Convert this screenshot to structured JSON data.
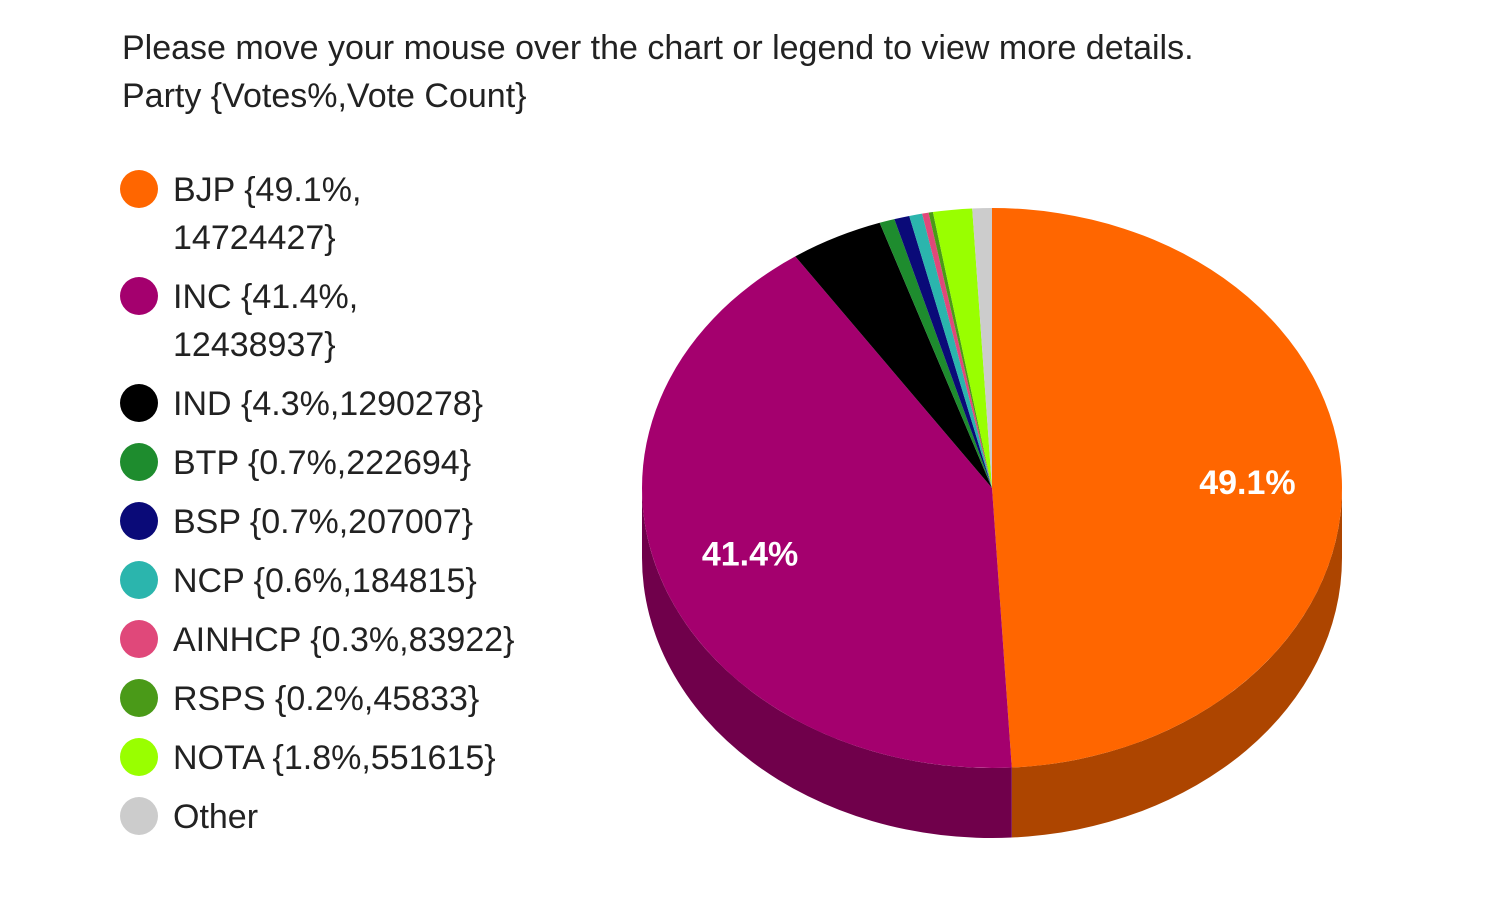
{
  "instruction": "Please move your mouse over the chart or legend to view more details.",
  "subtitle": "Party {Votes%,Vote Count}",
  "chart_data": {
    "type": "pie",
    "subtitle": "Party {Votes%,Vote Count}",
    "series": [
      {
        "name": "BJP",
        "percent": 49.1,
        "votes": 14724427,
        "color": "#ff6600",
        "legend_lines": [
          "BJP {49.1%,",
          "14724427}"
        ],
        "data_label": "49.1%"
      },
      {
        "name": "INC",
        "percent": 41.4,
        "votes": 12438937,
        "color": "#a4006e",
        "legend_lines": [
          "INC {41.4%,",
          "12438937}"
        ],
        "data_label": "41.4%"
      },
      {
        "name": "IND",
        "percent": 4.3,
        "votes": 1290278,
        "color": "#000000",
        "legend_lines": [
          "IND {4.3%,1290278}"
        ],
        "data_label": ""
      },
      {
        "name": "BTP",
        "percent": 0.7,
        "votes": 222694,
        "color": "#1e8c2e",
        "legend_lines": [
          "BTP {0.7%,222694}"
        ],
        "data_label": ""
      },
      {
        "name": "BSP",
        "percent": 0.7,
        "votes": 207007,
        "color": "#0a0a78",
        "legend_lines": [
          "BSP {0.7%,207007}"
        ],
        "data_label": ""
      },
      {
        "name": "NCP",
        "percent": 0.6,
        "votes": 184815,
        "color": "#2bb5ad",
        "legend_lines": [
          "NCP {0.6%,184815}"
        ],
        "data_label": ""
      },
      {
        "name": "AINHCP",
        "percent": 0.3,
        "votes": 83922,
        "color": "#e0487a",
        "legend_lines": [
          "AINHCP {0.3%,83922}"
        ],
        "data_label": ""
      },
      {
        "name": "RSPS",
        "percent": 0.2,
        "votes": 45833,
        "color": "#4a9a18",
        "legend_lines": [
          "RSPS {0.2%,45833}"
        ],
        "data_label": ""
      },
      {
        "name": "NOTA",
        "percent": 1.8,
        "votes": 551615,
        "color": "#99ff00",
        "legend_lines": [
          "NOTA {1.8%,551615}"
        ],
        "data_label": ""
      },
      {
        "name": "Other",
        "percent": 0.9,
        "votes": null,
        "color": "#cccccc",
        "legend_lines": [
          "Other"
        ],
        "data_label": ""
      }
    ],
    "legend_position": "left",
    "is_3d": true
  }
}
